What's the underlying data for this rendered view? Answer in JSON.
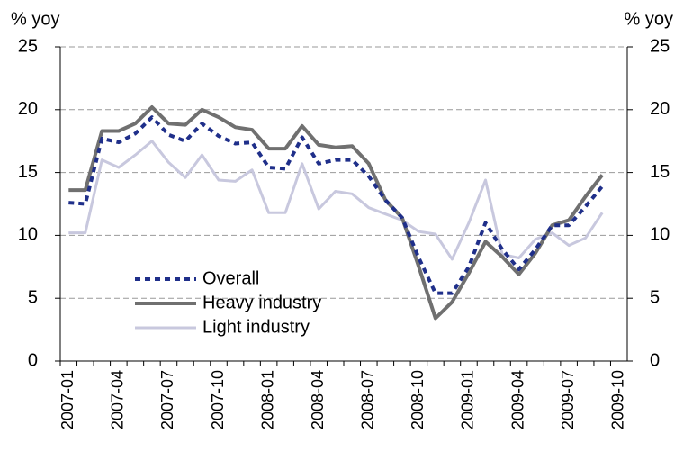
{
  "chart_data": {
    "type": "line",
    "ylabel": "% yoy",
    "y2label": "% yoy",
    "categories": [
      "2007-01",
      null,
      null,
      "2007-04",
      null,
      null,
      "2007-07",
      null,
      null,
      "2007-10",
      null,
      null,
      "2008-01",
      null,
      null,
      "2008-04",
      null,
      null,
      "2008-07",
      null,
      null,
      "2008-10",
      null,
      null,
      "2009-01",
      null,
      null,
      "2009-04",
      null,
      null,
      "2009-07",
      null,
      null,
      "2009-10"
    ],
    "series": [
      {
        "name": "Overall",
        "color": "#1f2f8a",
        "style": "dashed",
        "values": [
          12.6,
          12.5,
          17.7,
          17.4,
          18.1,
          19.4,
          18.0,
          17.5,
          18.9,
          17.9,
          17.3,
          17.4,
          15.4,
          15.3,
          17.8,
          15.7,
          16.0,
          16.0,
          14.7,
          12.8,
          11.4,
          8.2,
          5.4,
          5.4,
          7.5,
          11.0,
          8.9,
          7.3,
          8.9,
          10.8,
          10.8,
          12.3,
          13.9,
          null
        ]
      },
      {
        "name": "Heavy industry",
        "color": "#707070",
        "style": "solid",
        "values": [
          13.6,
          13.6,
          18.3,
          18.3,
          18.9,
          20.2,
          18.9,
          18.8,
          20.0,
          19.4,
          18.6,
          18.4,
          16.9,
          16.9,
          18.7,
          17.2,
          17.0,
          17.1,
          15.7,
          12.8,
          11.4,
          7.5,
          3.4,
          4.7,
          7.0,
          9.5,
          8.3,
          6.9,
          8.6,
          10.8,
          11.2,
          13.1,
          14.8,
          null
        ]
      },
      {
        "name": "Light industry",
        "color": "#c8c8de",
        "style": "solid",
        "values": [
          10.2,
          10.2,
          16.0,
          15.4,
          16.4,
          17.5,
          15.8,
          14.6,
          16.4,
          14.4,
          14.3,
          15.2,
          11.8,
          11.8,
          15.7,
          12.1,
          13.5,
          13.3,
          12.2,
          11.7,
          11.2,
          10.3,
          10.1,
          8.1,
          11.0,
          14.4,
          8.5,
          8.2,
          9.7,
          10.2,
          9.2,
          9.8,
          11.8,
          null
        ]
      }
    ],
    "ylim": [
      0,
      25
    ],
    "yticks": [
      0,
      5,
      10,
      15,
      20,
      25
    ],
    "y2lim": [
      0,
      25
    ],
    "y2ticks": [
      0,
      5,
      10,
      15,
      20,
      25
    ],
    "grid": true,
    "legend": "lower left"
  }
}
